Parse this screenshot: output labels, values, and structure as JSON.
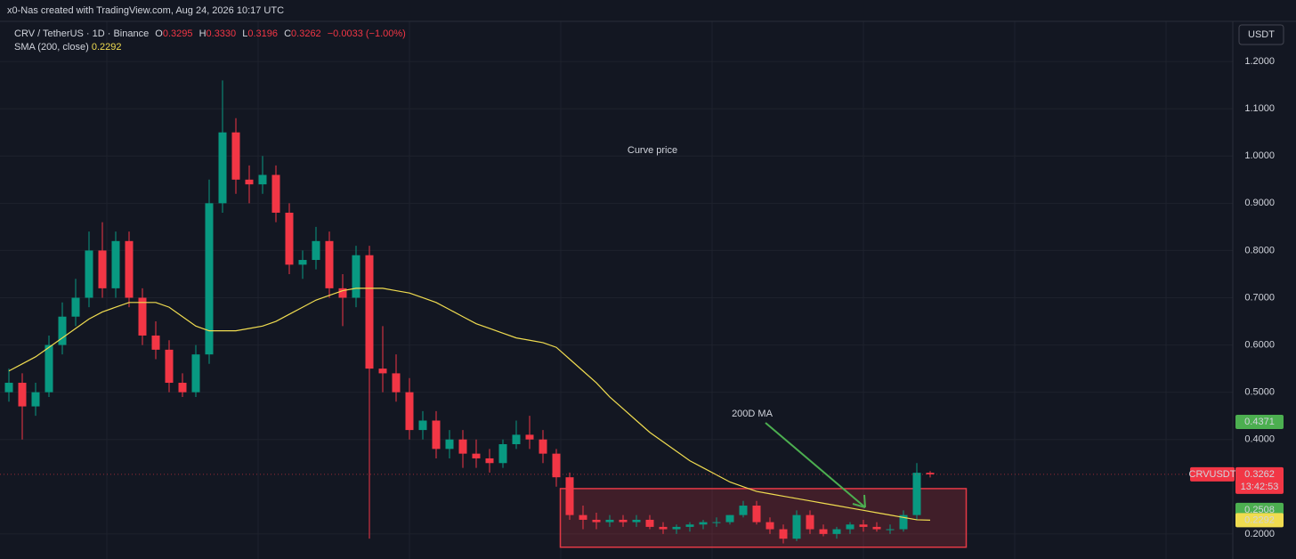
{
  "header": {
    "credit": "x0-Nas created with TradingView.com, Aug 24, 2026 10:17 UTC",
    "currency_button": "USDT"
  },
  "chart_data": {
    "type": "candlestick",
    "symbol": "CRV / TetherUS · 1D · Binance",
    "legend": {
      "o_label": "O",
      "open": 0.3295,
      "h_label": "H",
      "high": {
        "value": 0.333,
        "label": "0.3330"
      },
      "l_label": "L",
      "low": 0.3196,
      "c_label": "C",
      "close": 0.3262,
      "change": {
        "value": -0.0033,
        "label": "−0.0033"
      },
      "change_pct": {
        "value": -1,
        "label": "(−1.00%)"
      },
      "color": "#f23645"
    },
    "up_color": "#089981",
    "down_color": "#f23645",
    "candles": {
      "open": [
        0.5,
        0.52,
        0.47,
        0.5,
        0.6,
        0.66,
        0.7,
        0.8,
        0.72,
        0.82,
        0.7,
        0.62,
        0.59,
        0.52,
        0.5,
        0.58,
        0.9,
        1.05,
        0.95,
        0.94,
        0.96,
        0.88,
        0.77,
        0.78,
        0.82,
        0.72,
        0.7,
        0.79,
        0.55,
        0.54,
        0.5,
        0.42,
        0.44,
        0.38,
        0.4,
        0.37,
        0.36,
        0.35,
        0.39,
        0.41,
        0.4,
        0.37,
        0.32,
        0.24,
        0.23,
        0.225,
        0.23,
        0.225,
        0.23,
        0.215,
        0.21,
        0.215,
        0.22,
        0.225,
        0.225,
        0.24,
        0.26,
        0.225,
        0.21,
        0.19,
        0.24,
        0.21,
        0.2,
        0.21,
        0.22,
        0.215,
        0.21,
        0.21,
        0.24,
        0.3295
      ],
      "high": [
        0.55,
        0.54,
        0.52,
        0.62,
        0.69,
        0.74,
        0.84,
        0.86,
        0.84,
        0.84,
        0.72,
        0.65,
        0.61,
        0.54,
        0.6,
        0.95,
        1.16,
        1.08,
        0.98,
        1.0,
        0.98,
        0.9,
        0.8,
        0.85,
        0.84,
        0.75,
        0.81,
        0.81,
        0.64,
        0.58,
        0.53,
        0.46,
        0.46,
        0.42,
        0.42,
        0.4,
        0.38,
        0.4,
        0.44,
        0.45,
        0.42,
        0.38,
        0.33,
        0.26,
        0.245,
        0.24,
        0.24,
        0.24,
        0.24,
        0.225,
        0.22,
        0.225,
        0.23,
        0.235,
        0.24,
        0.27,
        0.27,
        0.235,
        0.22,
        0.25,
        0.25,
        0.22,
        0.215,
        0.225,
        0.23,
        0.225,
        0.22,
        0.25,
        0.35,
        0.333
      ],
      "low": [
        0.48,
        0.4,
        0.45,
        0.49,
        0.58,
        0.64,
        0.68,
        0.7,
        0.7,
        0.68,
        0.6,
        0.57,
        0.5,
        0.49,
        0.49,
        0.56,
        0.88,
        0.92,
        0.9,
        0.92,
        0.86,
        0.75,
        0.74,
        0.76,
        0.7,
        0.64,
        0.68,
        0.19,
        0.5,
        0.48,
        0.4,
        0.4,
        0.36,
        0.36,
        0.34,
        0.34,
        0.33,
        0.34,
        0.38,
        0.38,
        0.35,
        0.3,
        0.23,
        0.21,
        0.21,
        0.215,
        0.215,
        0.215,
        0.21,
        0.2,
        0.2,
        0.205,
        0.21,
        0.215,
        0.22,
        0.235,
        0.22,
        0.2,
        0.18,
        0.185,
        0.2,
        0.195,
        0.19,
        0.2,
        0.205,
        0.205,
        0.2,
        0.205,
        0.23,
        0.3196
      ],
      "close": [
        0.52,
        0.47,
        0.5,
        0.6,
        0.66,
        0.7,
        0.8,
        0.72,
        0.82,
        0.7,
        0.62,
        0.59,
        0.52,
        0.5,
        0.58,
        0.9,
        1.05,
        0.95,
        0.94,
        0.96,
        0.88,
        0.77,
        0.78,
        0.82,
        0.72,
        0.7,
        0.79,
        0.55,
        0.54,
        0.5,
        0.42,
        0.44,
        0.38,
        0.4,
        0.37,
        0.36,
        0.35,
        0.39,
        0.41,
        0.4,
        0.37,
        0.32,
        0.24,
        0.23,
        0.225,
        0.23,
        0.225,
        0.23,
        0.215,
        0.21,
        0.215,
        0.22,
        0.225,
        0.225,
        0.24,
        0.26,
        0.225,
        0.21,
        0.19,
        0.24,
        0.21,
        0.2,
        0.21,
        0.22,
        0.215,
        0.21,
        0.21,
        0.24,
        0.3295,
        0.3262
      ]
    },
    "sma": {
      "name": "SMA (200, close)",
      "color": "#f0dc50",
      "last": 0.2292,
      "values": [
        0.545,
        0.56,
        0.575,
        0.595,
        0.615,
        0.635,
        0.655,
        0.67,
        0.68,
        0.69,
        0.69,
        0.69,
        0.68,
        0.66,
        0.64,
        0.63,
        0.63,
        0.63,
        0.635,
        0.64,
        0.65,
        0.665,
        0.68,
        0.695,
        0.705,
        0.715,
        0.72,
        0.72,
        0.72,
        0.715,
        0.71,
        0.7,
        0.69,
        0.675,
        0.66,
        0.645,
        0.635,
        0.625,
        0.615,
        0.61,
        0.605,
        0.595,
        0.57,
        0.545,
        0.52,
        0.49,
        0.465,
        0.44,
        0.415,
        0.395,
        0.375,
        0.355,
        0.34,
        0.325,
        0.31,
        0.3,
        0.29,
        0.285,
        0.28,
        0.275,
        0.27,
        0.265,
        0.26,
        0.255,
        0.25,
        0.245,
        0.24,
        0.235,
        0.23,
        0.2292
      ]
    },
    "last_price": {
      "symbol": "CRVUSDT",
      "value": 0.3262,
      "countdown": "13:42:53",
      "color": "#f23645"
    },
    "price_tags": [
      {
        "value": 0.4371,
        "color": "#4caf50"
      },
      {
        "value": 0.2508,
        "color": "#4caf50"
      }
    ],
    "highlight_box": {
      "ylim": [
        0.172,
        0.296
      ],
      "xlim": [
        41.3,
        71.7
      ],
      "color": "#e53945"
    },
    "annotations": [
      {
        "text": "Curve price"
      },
      {
        "text": "200D MA"
      }
    ],
    "ylim": [
      0.147,
      1.285
    ],
    "yticks": [
      {
        "value": 0.2,
        "label": "0.2000"
      },
      {
        "value": 0.4,
        "label": "0.4000"
      },
      {
        "value": 0.5,
        "label": "0.5000"
      },
      {
        "value": 0.6,
        "label": "0.6000"
      },
      {
        "value": 0.7,
        "label": "0.7000"
      },
      {
        "value": 0.8,
        "label": "0.8000"
      },
      {
        "value": 0.9,
        "label": "0.9000"
      },
      {
        "value": 1,
        "label": "1.0000"
      },
      {
        "value": 1.1,
        "label": "1.1000"
      },
      {
        "value": 1.2,
        "label": "1.2000"
      }
    ],
    "grid": true
  }
}
